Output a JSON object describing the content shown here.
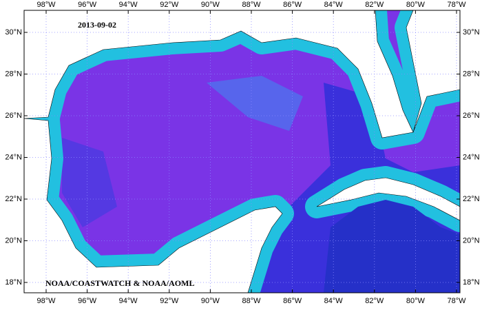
{
  "map": {
    "date": "2013-09-02",
    "credit": "NOAA/COASTWATCH & NOAA/AOML",
    "lon_labels": [
      "98°W",
      "96°W",
      "94°W",
      "92°W",
      "90°W",
      "88°W",
      "86°W",
      "84°W",
      "82°W",
      "80°W",
      "78°W"
    ],
    "lat_labels": [
      "30°N",
      "28°N",
      "26°N",
      "24°N",
      "22°N",
      "20°N",
      "18°N"
    ]
  }
}
